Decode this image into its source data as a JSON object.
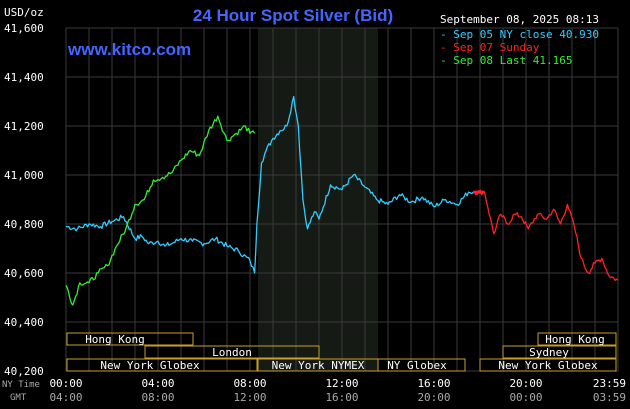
{
  "header": {
    "units": "USD/oz",
    "title": "24 Hour Spot Silver (Bid)",
    "brand": "www.kitco.com",
    "datetime": "September 08, 2025 08:13"
  },
  "legend": [
    {
      "text": "- Sep 05 NY close 40.930",
      "color": "#33ccff"
    },
    {
      "text": "- Sep 07 Sunday",
      "color": "#ff2222"
    },
    {
      "text": "- Sep 08 Last 41.165",
      "color": "#33ee33"
    }
  ],
  "time_labels": {
    "row1_prefix": "NY Time",
    "row2_prefix": "GMT",
    "ny": [
      "00:00",
      "04:00",
      "08:00",
      "12:00",
      "16:00",
      "20:00",
      "23:59"
    ],
    "gmt": [
      "04:00",
      "08:00",
      "12:00",
      "16:00",
      "20:00",
      "00:00",
      "03:59"
    ]
  },
  "sessions": {
    "left": [
      {
        "label": "Hong Kong"
      },
      {
        "label": "London"
      },
      {
        "label": "New York Globex"
      },
      {
        "label": "New York NYMEX"
      },
      {
        "label": "NY Globex"
      }
    ],
    "right": [
      {
        "label": "Hong Kong"
      },
      {
        "label": "Sydney"
      },
      {
        "label": "New York Globex"
      }
    ]
  },
  "colors": {
    "background": "#000000",
    "grid": "#3a3a3a",
    "nymex_band": "#151a15",
    "title": "#4466ff",
    "brand": "#4466ff",
    "session_box": "#c8a028",
    "axis_text": "#ffffff"
  },
  "chart_data": {
    "type": "line",
    "title": "24 Hour Spot Silver (Bid)",
    "ylabel": "USD/oz",
    "ylim": [
      40.2,
      41.6
    ],
    "yticks": [
      40.2,
      40.4,
      40.6,
      40.8,
      41.0,
      41.2,
      41.4,
      41.6
    ],
    "ytick_labels": [
      "40,200",
      "40,400",
      "40,600",
      "40,800",
      "41,000",
      "41,200",
      "41,400",
      "41,600"
    ],
    "xlim": [
      0,
      24
    ],
    "xticks": [
      0,
      4,
      8,
      12,
      16,
      20,
      24
    ],
    "grid": true,
    "series": [
      {
        "name": "Sep 05 NY close 40.930",
        "color": "#33ccff",
        "x": [
          0,
          0.5,
          1,
          1.5,
          2,
          2.5,
          3,
          3.3,
          3.6,
          4,
          4.3,
          4.6,
          5,
          5.5,
          6,
          6.5,
          7,
          7.5,
          8,
          8.2,
          8.3,
          8.5,
          8.7,
          9,
          9.3,
          9.6,
          9.9,
          10.1,
          10.3,
          10.5,
          10.8,
          11,
          11.5,
          12,
          12.5,
          13,
          13.5,
          14,
          14.5,
          15,
          15.5,
          16,
          16.5,
          17,
          17.5,
          17.7
        ],
        "values": [
          40.79,
          40.78,
          40.8,
          40.79,
          40.81,
          40.83,
          40.74,
          40.75,
          40.72,
          40.73,
          40.71,
          40.72,
          40.74,
          40.73,
          40.72,
          40.74,
          40.71,
          40.69,
          40.65,
          40.6,
          40.8,
          41.05,
          41.1,
          41.15,
          41.18,
          41.2,
          41.32,
          41.2,
          40.9,
          40.78,
          40.85,
          40.82,
          40.96,
          40.94,
          41.0,
          40.95,
          40.9,
          40.88,
          40.92,
          40.89,
          40.91,
          40.87,
          40.9,
          40.88,
          40.93,
          40.93
        ]
      },
      {
        "name": "Sep 07 Sunday",
        "color": "#ff2222",
        "x": [
          17.7,
          18.2,
          18.6,
          18.9,
          19.2,
          19.5,
          19.8,
          20.1,
          20.5,
          20.9,
          21.2,
          21.5,
          21.8,
          22.1,
          22.4,
          22.7,
          23.0,
          23.3,
          23.6,
          24
        ],
        "values": [
          40.93,
          40.93,
          40.76,
          40.84,
          40.8,
          40.84,
          40.83,
          40.78,
          40.84,
          40.82,
          40.86,
          40.8,
          40.88,
          40.79,
          40.66,
          40.6,
          40.64,
          40.66,
          40.59,
          40.57
        ]
      },
      {
        "name": "Sep 08 Last 41.165",
        "color": "#33ee33",
        "x": [
          0,
          0.3,
          0.6,
          1,
          1.4,
          1.8,
          2.2,
          2.6,
          3,
          3.4,
          3.8,
          4.2,
          4.6,
          5,
          5.4,
          5.8,
          6.2,
          6.6,
          7,
          7.4,
          7.8,
          8.0,
          8.2
        ],
        "values": [
          40.55,
          40.47,
          40.56,
          40.56,
          40.6,
          40.63,
          40.71,
          40.78,
          40.88,
          40.9,
          40.98,
          40.99,
          41.01,
          41.06,
          41.1,
          41.08,
          41.18,
          41.24,
          41.14,
          41.17,
          41.2,
          41.17,
          41.17
        ]
      }
    ]
  }
}
